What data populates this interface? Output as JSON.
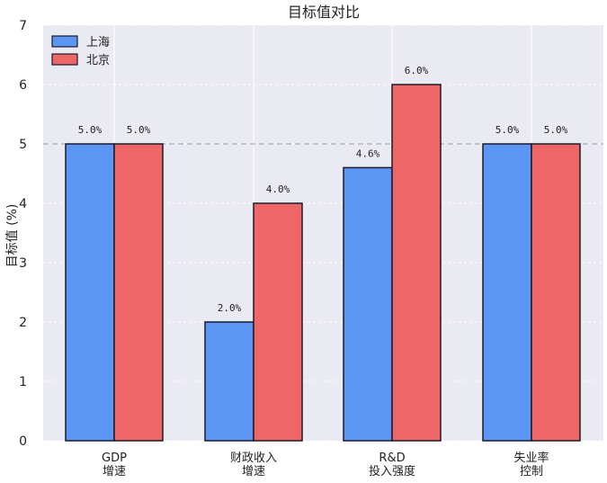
{
  "chart_data": {
    "type": "bar",
    "title": "目标值对比",
    "ylabel": "目标值 (%)",
    "xlabel": "",
    "ylim": [
      0,
      7
    ],
    "yticks": [
      0,
      1,
      2,
      3,
      4,
      5,
      6,
      7
    ],
    "categories": [
      [
        "GDP",
        "增速"
      ],
      [
        "财政收入",
        "增速"
      ],
      [
        "R&D",
        "投入强度"
      ],
      [
        "失业率",
        "控制"
      ]
    ],
    "series": [
      {
        "name": "上海",
        "values": [
          5.0,
          2.0,
          4.6,
          5.0
        ],
        "labels": [
          "5.0%",
          "2.0%",
          "4.6%",
          "5.0%"
        ],
        "color": "#5b96f5"
      },
      {
        "name": "北京",
        "values": [
          5.0,
          4.0,
          6.0,
          5.0
        ],
        "labels": [
          "5.0%",
          "4.0%",
          "6.0%",
          "5.0%"
        ],
        "color": "#ee6666"
      }
    ],
    "reference_line": 5,
    "legend": "top-left",
    "grid": true,
    "background": "#eaeaf2"
  }
}
